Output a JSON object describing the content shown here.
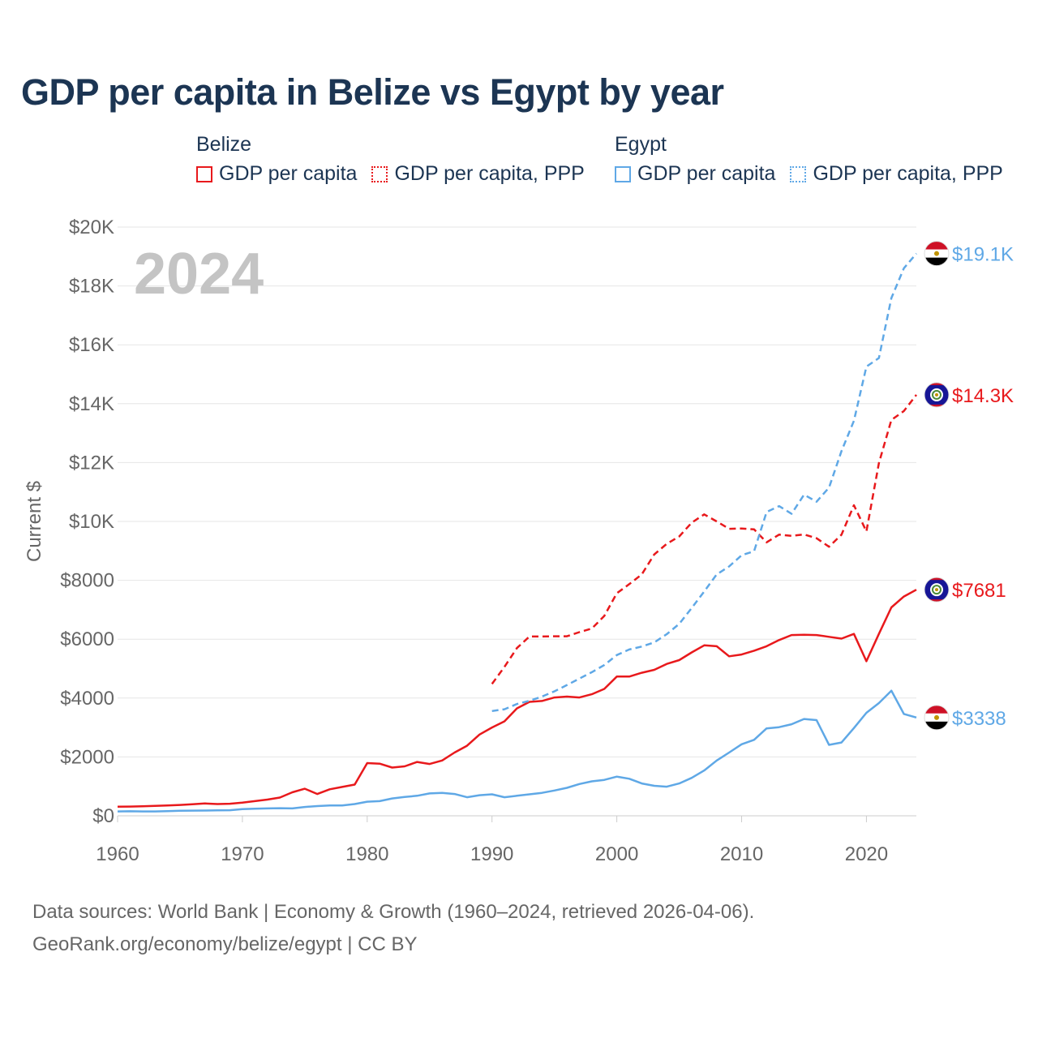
{
  "title": "GDP per capita in Belize vs Egypt by year",
  "legend": {
    "groups": [
      {
        "name": "Belize",
        "color": "#e8191c",
        "items": [
          {
            "label": "GDP per capita",
            "style": "solid"
          },
          {
            "label": "GDP per capita, PPP",
            "style": "dotted"
          }
        ]
      },
      {
        "name": "Egypt",
        "color": "#5fa8e6",
        "items": [
          {
            "label": "GDP per capita",
            "style": "solid"
          },
          {
            "label": "GDP per capita, PPP",
            "style": "dotted"
          }
        ]
      }
    ]
  },
  "source": {
    "line1": "Data sources: World Bank | Economy & Growth (1960–2024, retrieved 2026-04-06).",
    "line2": "GeoRank.org/economy/belize/egypt | CC BY"
  },
  "chart_data": {
    "type": "line",
    "year_label": "2024",
    "ylabel": "Current $",
    "xlim": [
      1960,
      2024
    ],
    "ylim": [
      0,
      20000
    ],
    "yticks": [
      {
        "value": 0,
        "label": "$0"
      },
      {
        "value": 2000,
        "label": "$2000"
      },
      {
        "value": 4000,
        "label": "$4000"
      },
      {
        "value": 6000,
        "label": "$6000"
      },
      {
        "value": 8000,
        "label": "$8000"
      },
      {
        "value": 10000,
        "label": "$10K"
      },
      {
        "value": 12000,
        "label": "$12K"
      },
      {
        "value": 14000,
        "label": "$14K"
      },
      {
        "value": 16000,
        "label": "$16K"
      },
      {
        "value": 18000,
        "label": "$18K"
      },
      {
        "value": 20000,
        "label": "$20K"
      }
    ],
    "xticks": [
      1960,
      1970,
      1980,
      1990,
      2000,
      2010,
      2020
    ],
    "grid": true,
    "series": [
      {
        "name": "Belize GDP per capita",
        "country": "belize",
        "color": "#e8191c",
        "dash": "solid",
        "end_label": "$7681",
        "x": [
          1960,
          1961,
          1962,
          1963,
          1964,
          1965,
          1966,
          1967,
          1968,
          1969,
          1970,
          1971,
          1972,
          1973,
          1974,
          1975,
          1976,
          1977,
          1978,
          1979,
          1980,
          1981,
          1982,
          1983,
          1984,
          1985,
          1986,
          1987,
          1988,
          1989,
          1990,
          1991,
          1992,
          1993,
          1994,
          1995,
          1996,
          1997,
          1998,
          1999,
          2000,
          2001,
          2002,
          2003,
          2004,
          2005,
          2006,
          2007,
          2008,
          2009,
          2010,
          2011,
          2012,
          2013,
          2014,
          2015,
          2016,
          2017,
          2018,
          2019,
          2020,
          2021,
          2022,
          2023,
          2024
        ],
        "values": [
          310,
          315,
          325,
          335,
          350,
          370,
          390,
          420,
          400,
          410,
          450,
          500,
          550,
          620,
          800,
          920,
          740,
          900,
          980,
          1060,
          1790,
          1770,
          1640,
          1680,
          1830,
          1760,
          1880,
          2150,
          2380,
          2760,
          3000,
          3210,
          3650,
          3870,
          3900,
          4020,
          4050,
          4020,
          4130,
          4310,
          4730,
          4730,
          4860,
          4960,
          5160,
          5290,
          5550,
          5790,
          5760,
          5420,
          5480,
          5610,
          5760,
          5970,
          6140,
          6150,
          6140,
          6080,
          6020,
          6180,
          5250,
          6180,
          7080,
          7450,
          7681
        ]
      },
      {
        "name": "Belize GDP per capita, PPP",
        "country": "belize",
        "color": "#e8191c",
        "dash": "dashed",
        "end_label": "$14.3K",
        "x": [
          1990,
          1991,
          1992,
          1993,
          1994,
          1995,
          1996,
          1997,
          1998,
          1999,
          2000,
          2001,
          2002,
          2003,
          2004,
          2005,
          2006,
          2007,
          2008,
          2009,
          2010,
          2011,
          2012,
          2013,
          2014,
          2015,
          2016,
          2017,
          2018,
          2019,
          2020,
          2021,
          2022,
          2023,
          2024
        ],
        "values": [
          4480,
          5060,
          5700,
          6090,
          6090,
          6100,
          6100,
          6240,
          6360,
          6790,
          7560,
          7870,
          8200,
          8880,
          9240,
          9490,
          9960,
          10240,
          10000,
          9750,
          9760,
          9730,
          9290,
          9550,
          9510,
          9560,
          9430,
          9140,
          9550,
          10550,
          9660,
          11980,
          13450,
          13750,
          14300
        ]
      },
      {
        "name": "Egypt GDP per capita",
        "country": "egypt",
        "color": "#5fa8e6",
        "dash": "solid",
        "end_label": "$3338",
        "x": [
          1960,
          1961,
          1962,
          1963,
          1964,
          1965,
          1966,
          1967,
          1968,
          1969,
          1970,
          1971,
          1972,
          1973,
          1974,
          1975,
          1976,
          1977,
          1978,
          1979,
          1980,
          1981,
          1982,
          1983,
          1984,
          1985,
          1986,
          1987,
          1988,
          1989,
          1990,
          1991,
          1992,
          1993,
          1994,
          1995,
          1996,
          1997,
          1998,
          1999,
          2000,
          2001,
          2002,
          2003,
          2004,
          2005,
          2006,
          2007,
          2008,
          2009,
          2010,
          2011,
          2012,
          2013,
          2014,
          2015,
          2016,
          2017,
          2018,
          2019,
          2020,
          2021,
          2022,
          2023,
          2024
        ],
        "values": [
          150,
          155,
          150,
          150,
          160,
          170,
          175,
          180,
          185,
          190,
          230,
          240,
          250,
          260,
          250,
          300,
          330,
          350,
          350,
          400,
          480,
          500,
          590,
          640,
          680,
          760,
          780,
          740,
          630,
          700,
          730,
          630,
          680,
          730,
          780,
          860,
          950,
          1080,
          1170,
          1220,
          1330,
          1260,
          1100,
          1020,
          990,
          1100,
          1290,
          1540,
          1880,
          2150,
          2430,
          2580,
          2970,
          3010,
          3110,
          3290,
          3250,
          2410,
          2490,
          2980,
          3500,
          3830,
          4250,
          3460,
          3338
        ]
      },
      {
        "name": "Egypt GDP per capita, PPP",
        "country": "egypt",
        "color": "#5fa8e6",
        "dash": "dashed",
        "end_label": "$19.1K",
        "x": [
          1990,
          1991,
          1992,
          1993,
          1994,
          1995,
          1996,
          1997,
          1998,
          1999,
          2000,
          2001,
          2002,
          2003,
          2004,
          2005,
          2006,
          2007,
          2008,
          2009,
          2010,
          2011,
          2012,
          2013,
          2014,
          2015,
          2016,
          2017,
          2018,
          2019,
          2020,
          2021,
          2022,
          2023,
          2024
        ],
        "values": [
          3560,
          3620,
          3800,
          3910,
          4050,
          4230,
          4440,
          4660,
          4880,
          5120,
          5460,
          5650,
          5750,
          5890,
          6170,
          6520,
          7060,
          7620,
          8200,
          8470,
          8850,
          8990,
          10320,
          10520,
          10260,
          10910,
          10670,
          11150,
          12390,
          13420,
          15260,
          15550,
          17590,
          18600,
          19100
        ]
      }
    ]
  }
}
